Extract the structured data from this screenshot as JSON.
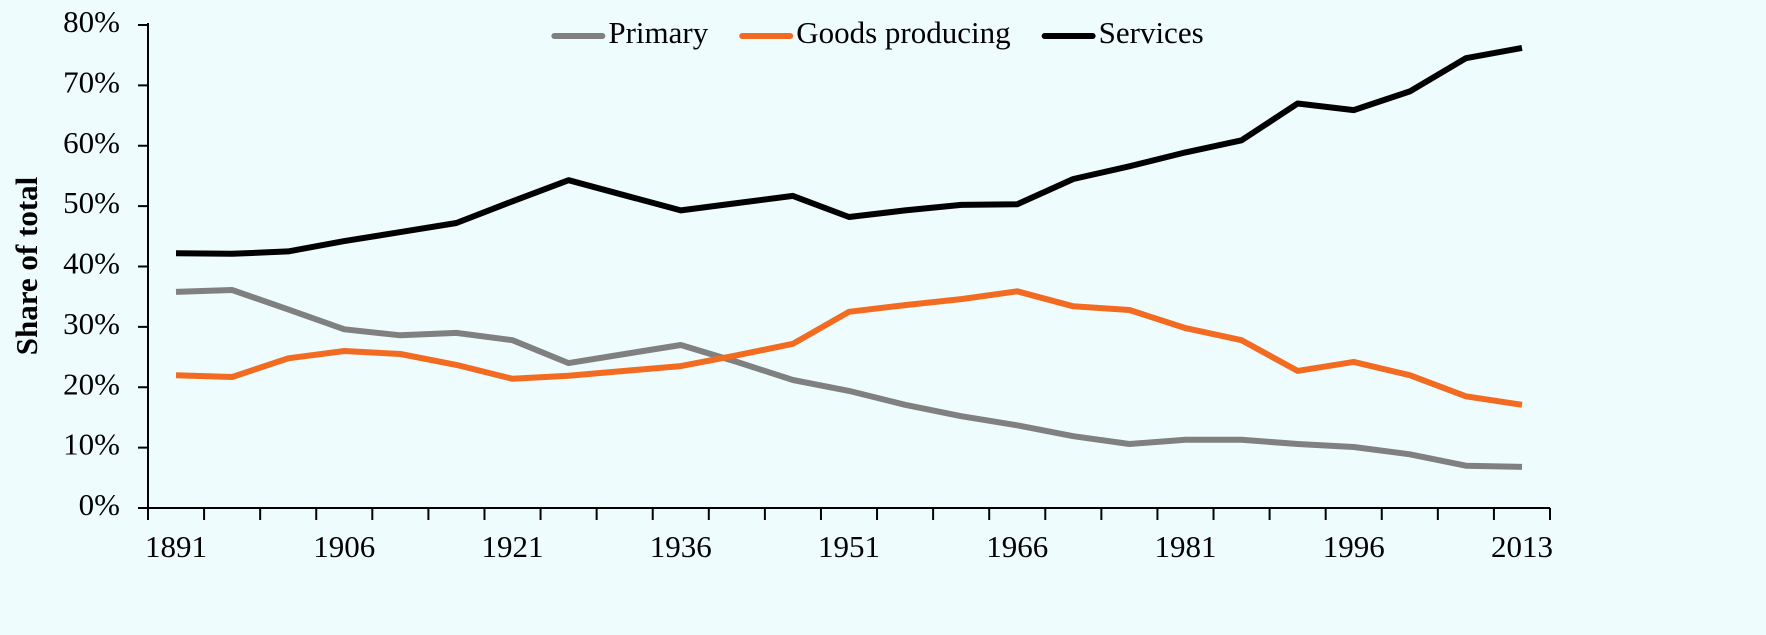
{
  "chart_data": {
    "type": "line",
    "y_label": "Share of total",
    "categories": [
      "1891",
      null,
      null,
      "1906",
      null,
      null,
      "1921",
      null,
      null,
      "1936",
      null,
      null,
      "1951",
      null,
      null,
      "1966",
      null,
      null,
      "1981",
      null,
      null,
      "1996",
      null,
      null,
      "2013"
    ],
    "series": [
      {
        "name": "Primary",
        "color": "#808080",
        "values": [
          35.8,
          36.1,
          32.9,
          29.6,
          28.6,
          29.0,
          27.8,
          24.0,
          25.5,
          27.0,
          24.2,
          21.2,
          19.4,
          17.1,
          15.2,
          13.7,
          11.9,
          10.6,
          11.3,
          11.3,
          10.6,
          10.1,
          8.9,
          7.0,
          6.8
        ]
      },
      {
        "name": "Goods producing",
        "color": "#f26b21",
        "values": [
          22.0,
          21.7,
          24.8,
          26.0,
          25.5,
          23.7,
          21.4,
          21.9,
          22.7,
          23.5,
          25.3,
          27.2,
          32.5,
          33.6,
          34.6,
          35.9,
          33.4,
          32.8,
          29.8,
          27.8,
          22.7,
          24.2,
          22.0,
          18.5,
          17.1
        ]
      },
      {
        "name": "Services",
        "color": "#000000",
        "values": [
          42.2,
          42.1,
          42.5,
          44.2,
          45.7,
          47.2,
          50.8,
          54.3,
          51.8,
          49.3,
          50.5,
          51.7,
          48.2,
          49.3,
          50.2,
          50.3,
          54.5,
          56.6,
          58.9,
          60.9,
          67.0,
          65.9,
          69.0,
          74.5,
          76.2
        ]
      }
    ],
    "ylim": [
      0,
      80
    ],
    "yticks": [
      {
        "value": 0,
        "label": "0%"
      },
      {
        "value": 10,
        "label": "10%"
      },
      {
        "value": 20,
        "label": "20%"
      },
      {
        "value": 30,
        "label": "30%"
      },
      {
        "value": 40,
        "label": "40%"
      },
      {
        "value": 50,
        "label": "50%"
      },
      {
        "value": 60,
        "label": "60%"
      },
      {
        "value": 70,
        "label": "70%"
      },
      {
        "value": 80,
        "label": "80%"
      }
    ],
    "grid": false,
    "legend": "top"
  }
}
